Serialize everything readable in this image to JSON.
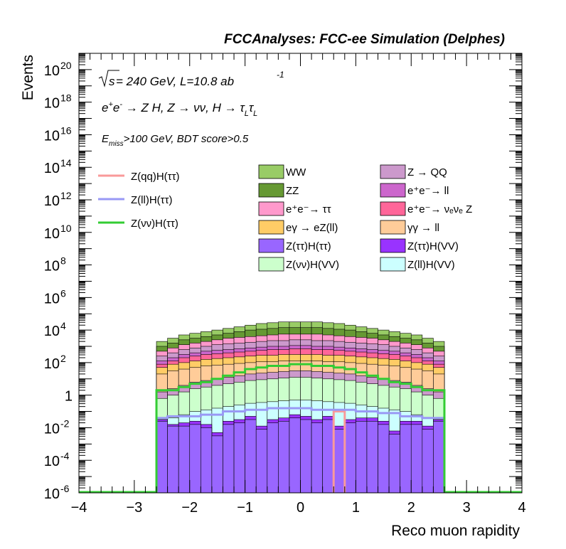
{
  "header": "FCCAnalyses: FCC-ee Simulation (Delphes)",
  "annotations": {
    "energy_prefix": "s",
    "energy_text": " = 240 GeV, L=10.8 ab",
    "energy_exp": "-1",
    "process": "e⁺e⁻ → Z H, Z → νν, H → τ_L τ_L",
    "process_main": "e",
    "cut": "E_miss>100 GeV, BDT score>0.5"
  },
  "chart_data": {
    "type": "bar",
    "subtype": "stacked-histogram-log",
    "xlabel": "Reco muon rapidity",
    "ylabel": "Events",
    "xlim": [
      -4,
      4
    ],
    "ylim": [
      1e-06,
      1e+21
    ],
    "y_scale": "log",
    "x_ticks": [
      "−4",
      "−3",
      "−2",
      "−1",
      "0",
      "1",
      "2",
      "3",
      "4"
    ],
    "y_ticks": [
      {
        "base": "10",
        "exp": "20"
      },
      {
        "base": "10",
        "exp": "18"
      },
      {
        "base": "10",
        "exp": "16"
      },
      {
        "base": "10",
        "exp": "14"
      },
      {
        "base": "10",
        "exp": "12"
      },
      {
        "base": "10",
        "exp": "10"
      },
      {
        "base": "10",
        "exp": "8"
      },
      {
        "base": "10",
        "exp": "6"
      },
      {
        "base": "10",
        "exp": "4"
      },
      {
        "base": "10",
        "exp": "2"
      },
      {
        "base": "1",
        "exp": ""
      },
      {
        "base": "10",
        "exp": "-2"
      },
      {
        "base": "10",
        "exp": "-4"
      },
      {
        "base": "10",
        "exp": "-6"
      }
    ],
    "bin_range": [
      -2.6,
      2.6
    ],
    "n_bins": 26,
    "stack_layers_top_log10": {
      "WW": [
        3.3,
        3.5,
        3.7,
        3.8,
        3.9,
        4.0,
        4.1,
        4.2,
        4.3,
        4.4,
        4.45,
        4.5,
        4.5,
        4.5,
        4.5,
        4.45,
        4.4,
        4.3,
        4.2,
        4.1,
        4.0,
        3.9,
        3.8,
        3.7,
        3.5,
        3.3
      ],
      "ZZ": [
        3.0,
        3.2,
        3.4,
        3.5,
        3.6,
        3.7,
        3.8,
        3.9,
        4.0,
        4.05,
        4.1,
        4.15,
        4.15,
        4.15,
        4.15,
        4.1,
        4.05,
        4.0,
        3.9,
        3.8,
        3.7,
        3.6,
        3.5,
        3.4,
        3.2,
        3.0
      ],
      "ee_tautau": [
        2.7,
        2.9,
        3.1,
        3.2,
        3.3,
        3.4,
        3.5,
        3.55,
        3.6,
        3.65,
        3.7,
        3.75,
        3.75,
        3.75,
        3.75,
        3.7,
        3.65,
        3.6,
        3.55,
        3.5,
        3.4,
        3.3,
        3.2,
        3.1,
        2.9,
        2.7
      ],
      "Z_QQ": [
        2.4,
        2.6,
        2.8,
        2.9,
        3.0,
        3.1,
        3.15,
        3.2,
        3.25,
        3.3,
        3.35,
        3.35,
        3.4,
        3.4,
        3.35,
        3.35,
        3.3,
        3.25,
        3.2,
        3.15,
        3.1,
        3.0,
        2.9,
        2.8,
        2.6,
        2.4
      ],
      "ee_ll": [
        2.1,
        2.3,
        2.5,
        2.6,
        2.7,
        2.75,
        2.8,
        2.85,
        2.9,
        2.95,
        3.0,
        3.0,
        3.05,
        3.05,
        3.0,
        3.0,
        2.95,
        2.9,
        2.85,
        2.8,
        2.75,
        2.7,
        2.6,
        2.5,
        2.3,
        2.1
      ],
      "ee_nunuZ": [
        1.9,
        2.1,
        2.3,
        2.4,
        2.5,
        2.55,
        2.6,
        2.65,
        2.7,
        2.75,
        2.8,
        2.8,
        2.85,
        2.85,
        2.8,
        2.8,
        2.75,
        2.7,
        2.65,
        2.6,
        2.55,
        2.5,
        2.4,
        2.3,
        2.1,
        1.9
      ],
      "egamma_eZll": [
        1.7,
        1.9,
        2.0,
        2.1,
        2.2,
        2.25,
        2.3,
        2.35,
        2.4,
        2.45,
        2.45,
        2.5,
        2.5,
        2.5,
        2.5,
        2.45,
        2.45,
        2.4,
        2.35,
        2.3,
        2.25,
        2.2,
        2.1,
        2.0,
        1.9,
        1.7
      ],
      "gammagamma_ll": [
        1.3,
        1.5,
        1.6,
        1.7,
        1.8,
        1.85,
        1.9,
        1.95,
        2.0,
        2.05,
        2.05,
        2.1,
        2.1,
        2.1,
        2.1,
        2.05,
        2.05,
        2.0,
        1.95,
        1.9,
        1.85,
        1.8,
        1.7,
        1.6,
        1.5,
        1.3
      ],
      "Z_QQ_low": [
        0.2,
        0.4,
        0.6,
        0.8,
        0.9,
        1.0,
        1.1,
        1.2,
        1.3,
        1.35,
        1.4,
        1.45,
        1.5,
        1.5,
        1.45,
        1.4,
        1.35,
        1.3,
        1.2,
        1.1,
        1.0,
        0.9,
        0.8,
        0.6,
        0.4,
        0.2
      ],
      "ZnunuH_VV": [
        -0.2,
        0.0,
        0.2,
        0.4,
        0.5,
        0.6,
        0.7,
        0.8,
        0.9,
        0.95,
        1.0,
        1.05,
        1.1,
        1.1,
        1.05,
        1.0,
        0.95,
        0.9,
        0.8,
        0.7,
        0.6,
        0.5,
        0.4,
        0.2,
        0.0,
        -0.2
      ],
      "ZllH_VV": [
        -1.5,
        -1.4,
        -1.2,
        -1.0,
        -0.9,
        -0.8,
        -0.7,
        -0.6,
        -0.5,
        -0.45,
        -0.4,
        -0.35,
        -0.3,
        -0.3,
        -0.35,
        -0.4,
        -0.45,
        -0.5,
        -0.6,
        -0.7,
        -0.8,
        -0.9,
        -1.0,
        -1.2,
        -1.4,
        -1.5
      ],
      "ZtautauH_VV": [
        -1.5,
        -1.8,
        -1.7,
        -1.6,
        -1.8,
        -2.3,
        -1.6,
        -1.5,
        -1.3,
        -1.9,
        -1.5,
        -1.4,
        -1.2,
        -1.3,
        -1.5,
        -1.3,
        -1.9,
        -1.5,
        -1.4,
        -1.4,
        -1.6,
        -2.2,
        -1.6,
        -1.6,
        -1.9,
        -1.5
      ],
      "ZtautauH_tautau": [
        -1.6,
        -1.9,
        -1.9,
        -1.8,
        -2.0,
        -2.5,
        -1.8,
        -1.7,
        -1.5,
        -2.1,
        -1.7,
        -1.6,
        -1.4,
        -1.5,
        -1.7,
        -1.5,
        -2.1,
        -1.7,
        -1.6,
        -1.6,
        -1.8,
        -2.4,
        -1.8,
        -1.8,
        -2.1,
        -1.6
      ]
    },
    "line_series": [
      {
        "name": "Z(qq)H(ττ)",
        "color": "#f99a9a",
        "bins_x_lo": [
          0.6,
          0.8
        ],
        "log10_value": -1.0
      },
      {
        "name": "Z(ll)H(ττ)",
        "color": "#9999f5",
        "log10_values": [
          -1.4,
          -1.3,
          -1.3,
          -1.3,
          -1.2,
          -1.2,
          -1.0,
          -1.0,
          -0.9,
          -0.9,
          -0.8,
          -0.8,
          -0.8,
          -0.8,
          -0.9,
          -0.9,
          -0.9,
          -0.9,
          -1.0,
          -1.0,
          -1.1,
          -1.1,
          -1.3,
          -1.3,
          -1.4,
          -1.4
        ]
      },
      {
        "name": "Z(νν)H(ττ)",
        "color": "#33cc33",
        "log10_values": [
          0.3,
          0.3,
          0.5,
          0.7,
          0.8,
          1.0,
          1.2,
          1.4,
          1.6,
          1.7,
          1.8,
          1.8,
          1.9,
          1.9,
          1.8,
          1.8,
          1.7,
          1.6,
          1.4,
          1.2,
          1.0,
          0.8,
          0.7,
          0.5,
          0.3,
          0.3
        ]
      }
    ],
    "legend_lines": [
      {
        "label": "Z(qq)H(ττ)",
        "color": "#f99a9a"
      },
      {
        "label": "Z(ll)H(ττ)",
        "color": "#9999f5"
      },
      {
        "label": "Z(νν)H(ττ)",
        "color": "#33cc33"
      }
    ],
    "legend_fill": [
      {
        "label": "WW",
        "color": "#99cc66"
      },
      {
        "label": "Z → QQ",
        "color": "#cc99cc"
      },
      {
        "label": "ZZ",
        "color": "#669933"
      },
      {
        "label": "e⁺e⁻→ ll",
        "color": "#cc66cc"
      },
      {
        "label": "e⁺e⁻→ ττ",
        "color": "#ff99cc"
      },
      {
        "label": "e⁺e⁻→ νₑνₑ Z",
        "color": "#ff6699"
      },
      {
        "label": "eγ → eZ(ll)",
        "color": "#ffcc66"
      },
      {
        "label": "γγ → ll",
        "color": "#ffcc99"
      },
      {
        "label": "Z(ττ)H(ττ)",
        "color": "#9966ff"
      },
      {
        "label": "Z(ττ)H(VV)",
        "color": "#9933ff"
      },
      {
        "label": "Z(νν)H(VV)",
        "color": "#ccffcc"
      },
      {
        "label": "Z(ll)H(VV)",
        "color": "#ccffff"
      }
    ],
    "layer_colors": {
      "WW": "#99cc66",
      "ZZ": "#669933",
      "ee_tautau": "#ff99cc",
      "Z_QQ": "#cc99cc",
      "ee_ll": "#cc66cc",
      "ee_nunuZ": "#ff6699",
      "egamma_eZll": "#ffcc66",
      "gammagamma_ll": "#ffcc99",
      "Z_QQ_low": "#cc99cc",
      "ZnunuH_VV": "#ccffcc",
      "ZllH_VV": "#ccffff",
      "ZtautauH_VV": "#9933ff",
      "ZtautauH_tautau": "#9966ff"
    }
  }
}
